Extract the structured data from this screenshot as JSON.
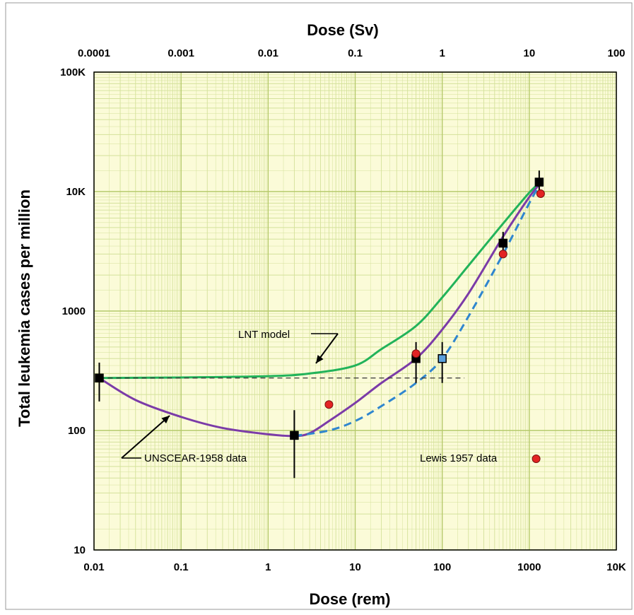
{
  "chart_data": {
    "type": "line",
    "title": "",
    "xlabel": "Dose (rem)",
    "x2label": "Dose (Sv)",
    "ylabel": "Total leukemia cases per million",
    "x_scale": "log",
    "y_scale": "log",
    "xlim": [
      0.01,
      10000
    ],
    "x2lim": [
      0.0001,
      100
    ],
    "ylim": [
      10,
      100000
    ],
    "grid": true,
    "x_tick_labels": [
      "0.01",
      "0.1",
      "1",
      "10",
      "100",
      "1000",
      "10K"
    ],
    "x2_tick_labels": [
      "0.0001",
      "0.001",
      "0.01",
      "0.1",
      "1",
      "10",
      "100"
    ],
    "y_tick_labels": [
      "10",
      "100",
      "1000",
      "10K",
      "100K"
    ],
    "colors": {
      "plot_background": "#fbfbd8",
      "grid_minor": "#d4e19a",
      "grid_major": "#b5c96a",
      "lnt": "#22b35a",
      "unscear": "#7b3ba8",
      "dashed_fit": "#2f86cf",
      "baseline": "#333333",
      "lewis_points": "#e32323"
    },
    "series": [
      {
        "style": "solid",
        "color_key": "lnt",
        "x": [
          0.0115,
          0.1,
          1,
          3,
          10,
          20,
          50,
          100,
          200,
          500,
          1000,
          1350
        ],
        "y": [
          275,
          278,
          285,
          300,
          350,
          480,
          750,
          1300,
          2400,
          5400,
          9800,
          12000
        ]
      },
      {
        "style": "solid",
        "color_key": "unscear",
        "x": [
          0.0115,
          0.03,
          0.1,
          0.3,
          1,
          2,
          3,
          5,
          10,
          20,
          50,
          100,
          200,
          500,
          1000,
          1350
        ],
        "y": [
          275,
          180,
          130,
          105,
          93,
          90,
          95,
          120,
          170,
          250,
          400,
          700,
          1400,
          4200,
          9000,
          11800
        ]
      },
      {
        "style": "dashed",
        "color_key": "dashed_fit",
        "x": [
          2,
          5,
          10,
          20,
          50,
          100,
          200,
          500,
          1000,
          1350
        ],
        "y": [
          90,
          100,
          120,
          160,
          250,
          400,
          900,
          3000,
          8000,
          11700
        ]
      },
      {
        "style": "dashed-thin",
        "color_key": "baseline",
        "x": [
          0.0115,
          180
        ],
        "y": [
          275,
          275
        ]
      }
    ],
    "unscear_points": [
      {
        "x": 0.0115,
        "y": 275,
        "err": [
          175,
          370
        ],
        "fill": "#000000"
      },
      {
        "x": 2,
        "y": 91,
        "err": [
          40,
          148
        ],
        "fill": "#000000"
      },
      {
        "x": 50,
        "y": 400,
        "err": [
          250,
          550
        ],
        "fill": "#000000"
      },
      {
        "x": 100,
        "y": 400,
        "err": [
          250,
          550
        ],
        "fill": "#5aa0dc"
      },
      {
        "x": 500,
        "y": 3700,
        "err": [
          2900,
          4600
        ],
        "fill": "#000000"
      },
      {
        "x": 1300,
        "y": 12000,
        "err": [
          9500,
          15000
        ],
        "fill": "#000000"
      }
    ],
    "lewis_points": [
      {
        "x": 5,
        "y": 165
      },
      {
        "x": 50,
        "y": 440
      },
      {
        "x": 500,
        "y": 3000
      },
      {
        "x": 1350,
        "y": 9600
      }
    ],
    "legend_marker": {
      "x": 1200,
      "y": 58
    },
    "annotations": [
      {
        "text": "LNT model",
        "id": "lnt"
      },
      {
        "text": "UNSCEAR-1958 data",
        "id": "unscear"
      },
      {
        "text": "Lewis 1957 data",
        "id": "lewis"
      }
    ]
  }
}
